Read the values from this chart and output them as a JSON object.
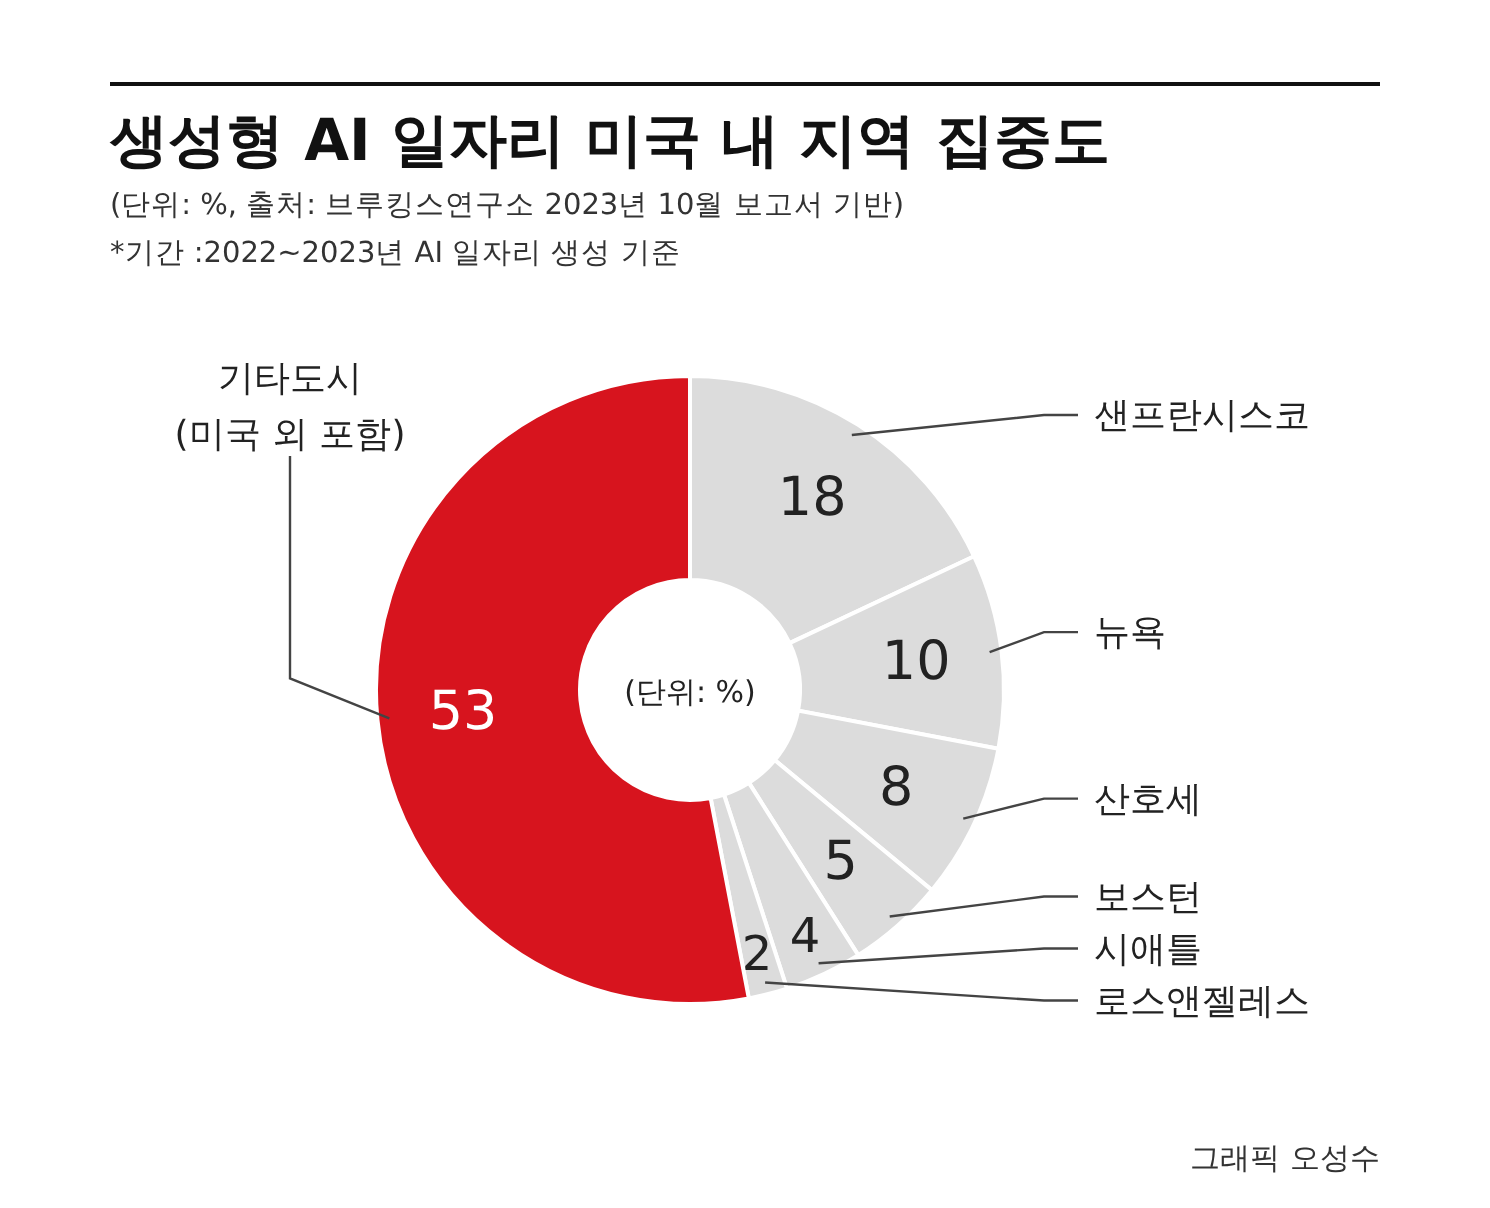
{
  "chart_data": {
    "type": "donut",
    "title": "생성형 AI 일자리 미국 내 지역 집중도",
    "subtitle": "(단위: %, 출처: 브루킹스연구소 2023년 10월 보고서 기반)\n*기간 :2022~2023년 AI 일자리 생성 기준",
    "categories": [
      "샌프란시스코",
      "뉴욕",
      "산호세",
      "보스턴",
      "시애틀",
      "로스앤젤레스",
      "기타도시 (미국 외 포함)"
    ],
    "values": [
      18,
      10,
      8,
      5,
      4,
      2,
      53
    ],
    "colors": [
      "#dcdcdc",
      "#dcdcdc",
      "#dcdcdc",
      "#dcdcdc",
      "#dcdcdc",
      "#dcdcdc",
      "#d7141e"
    ],
    "data_labels": true,
    "annotations": [
      "(단위: %)",
      "그래픽 오성수"
    ]
  }
}
